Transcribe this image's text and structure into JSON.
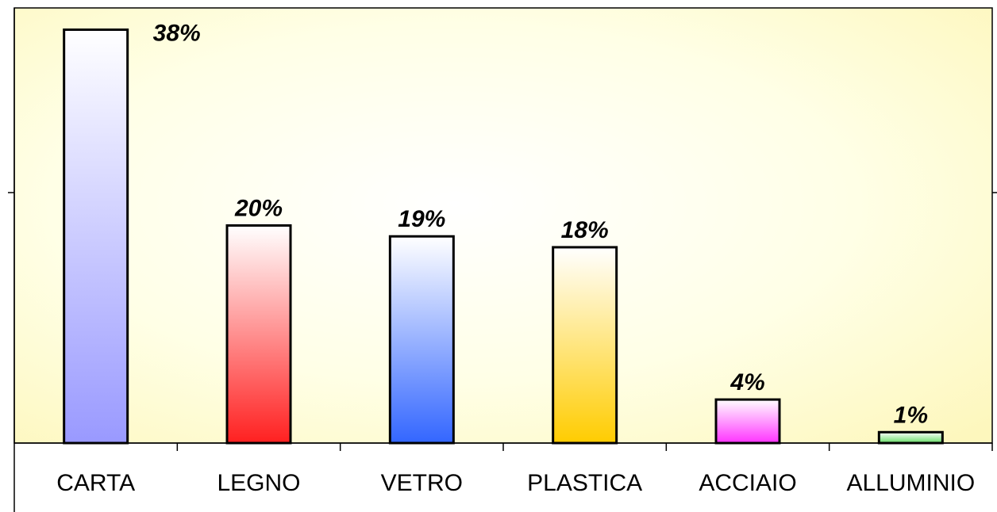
{
  "chart_data": {
    "type": "bar",
    "categories": [
      "CARTA",
      "LEGNO",
      "VETRO",
      "PLASTICA",
      "ACCIAIO",
      "ALLUMINIO"
    ],
    "values": [
      38,
      20,
      19,
      18,
      4,
      1
    ],
    "value_labels": [
      "38%",
      "20%",
      "19%",
      "18%",
      "4%",
      "1%"
    ],
    "colors": [
      "#9999ff",
      "#ff2020",
      "#3366ff",
      "#ffcc00",
      "#ff33ff",
      "#66dd66"
    ],
    "ylim": [
      0,
      40
    ],
    "background": "#ffffc6",
    "grid": false,
    "legend": "none"
  }
}
